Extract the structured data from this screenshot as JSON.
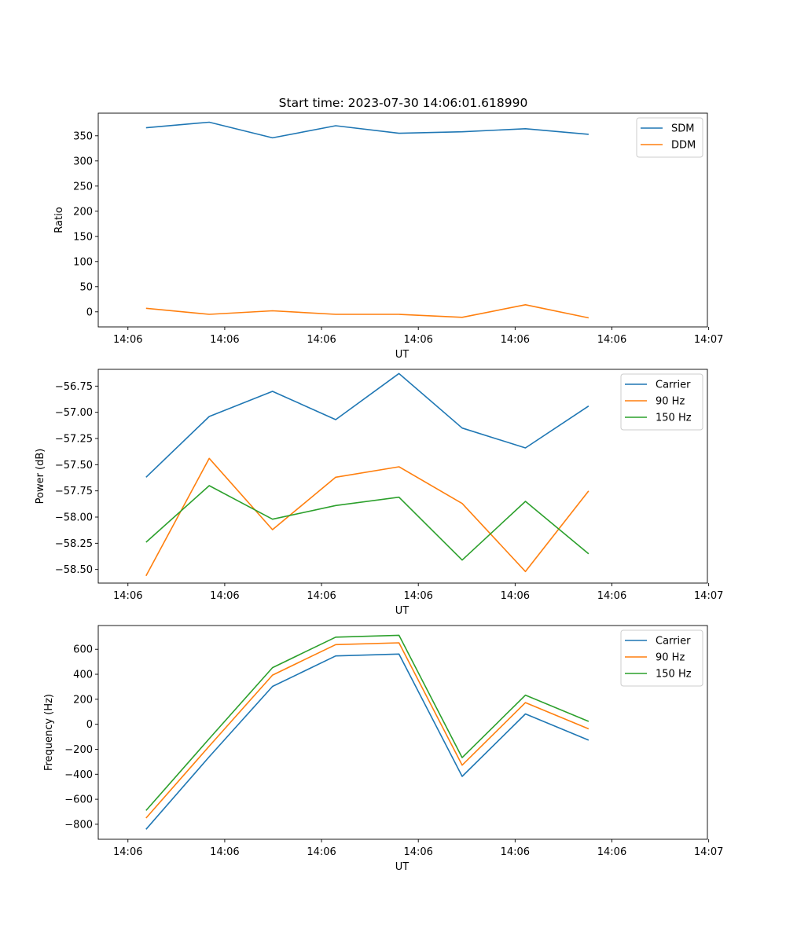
{
  "title": "Start time: 2023-07-30 14:06:01.618990",
  "chart_data": [
    {
      "type": "line",
      "ylabel": "Ratio",
      "xlabel": "UT",
      "xlim": [
        -0.46,
        8.98
      ],
      "ylim": [
        -30,
        395
      ],
      "yticks": [
        0,
        50,
        100,
        150,
        200,
        250,
        300,
        350
      ],
      "xticks": [
        0,
        1.5,
        3.0,
        4.5,
        6.0,
        7.5,
        9.0
      ],
      "xtick_labels": [
        "14:06",
        "14:06",
        "14:06",
        "14:06",
        "14:06",
        "14:06",
        "14:07"
      ],
      "x": [
        0.28,
        1.26,
        2.24,
        3.22,
        4.2,
        5.18,
        6.16,
        7.14
      ],
      "legend": "top-right",
      "series": [
        {
          "name": "SDM",
          "color": "#1f77b4",
          "values": [
            366,
            377,
            346,
            370,
            355,
            358,
            364,
            353
          ]
        },
        {
          "name": "DDM",
          "color": "#ff7f0e",
          "values": [
            7,
            -5,
            2,
            -5,
            -5,
            -11,
            14,
            -12
          ]
        }
      ]
    },
    {
      "type": "line",
      "ylabel": "Power (dB)",
      "xlabel": "UT",
      "xlim": [
        -0.46,
        8.98
      ],
      "ylim": [
        -58.63,
        -56.59
      ],
      "yticks": [
        -58.5,
        -58.25,
        -58.0,
        -57.75,
        -57.5,
        -57.25,
        -57.0,
        -56.75
      ],
      "ytick_labels": [
        "−58.50",
        "−58.25",
        "−58.00",
        "−57.75",
        "−57.50",
        "−57.25",
        "−57.00",
        "−56.75"
      ],
      "xticks": [
        0,
        1.5,
        3.0,
        4.5,
        6.0,
        7.5,
        9.0
      ],
      "xtick_labels": [
        "14:06",
        "14:06",
        "14:06",
        "14:06",
        "14:06",
        "14:06",
        "14:07"
      ],
      "x": [
        0.28,
        1.26,
        2.24,
        3.22,
        4.2,
        5.18,
        6.16,
        7.14
      ],
      "legend": "top-right",
      "series": [
        {
          "name": "Carrier",
          "color": "#1f77b4",
          "values": [
            -57.62,
            -57.04,
            -56.8,
            -57.07,
            -56.63,
            -57.15,
            -57.34,
            -56.94
          ]
        },
        {
          "name": "90 Hz",
          "color": "#ff7f0e",
          "values": [
            -58.56,
            -57.44,
            -58.12,
            -57.62,
            -57.52,
            -57.87,
            -58.52,
            -57.75
          ]
        },
        {
          "name": "150 Hz",
          "color": "#2ca02c",
          "values": [
            -58.24,
            -57.7,
            -58.02,
            -57.89,
            -57.81,
            -58.41,
            -57.85,
            -58.35
          ]
        }
      ]
    },
    {
      "type": "line",
      "ylabel": "Frequency (Hz)",
      "xlabel": "UT",
      "xlim": [
        -0.46,
        8.98
      ],
      "ylim": [
        -920,
        790
      ],
      "yticks": [
        -800,
        -600,
        -400,
        -200,
        0,
        200,
        400,
        600
      ],
      "ytick_labels": [
        "−800",
        "−600",
        "−400",
        "−200",
        "0",
        "200",
        "400",
        "600"
      ],
      "xticks": [
        0,
        1.5,
        3.0,
        4.5,
        6.0,
        7.5,
        9.0
      ],
      "xtick_labels": [
        "14:06",
        "14:06",
        "14:06",
        "14:06",
        "14:06",
        "14:06",
        "14:07"
      ],
      "x": [
        0.28,
        1.26,
        2.24,
        3.22,
        4.2,
        5.18,
        6.16,
        7.14
      ],
      "legend": "top-right",
      "series": [
        {
          "name": "Carrier",
          "color": "#1f77b4",
          "values": [
            -840,
            -260,
            303,
            547,
            562,
            -417,
            83,
            -127
          ]
        },
        {
          "name": "90 Hz",
          "color": "#ff7f0e",
          "values": [
            -750,
            -175,
            393,
            637,
            652,
            -327,
            173,
            -37
          ]
        },
        {
          "name": "150 Hz",
          "color": "#2ca02c",
          "values": [
            -690,
            -115,
            453,
            697,
            712,
            -267,
            233,
            23
          ]
        }
      ]
    }
  ]
}
